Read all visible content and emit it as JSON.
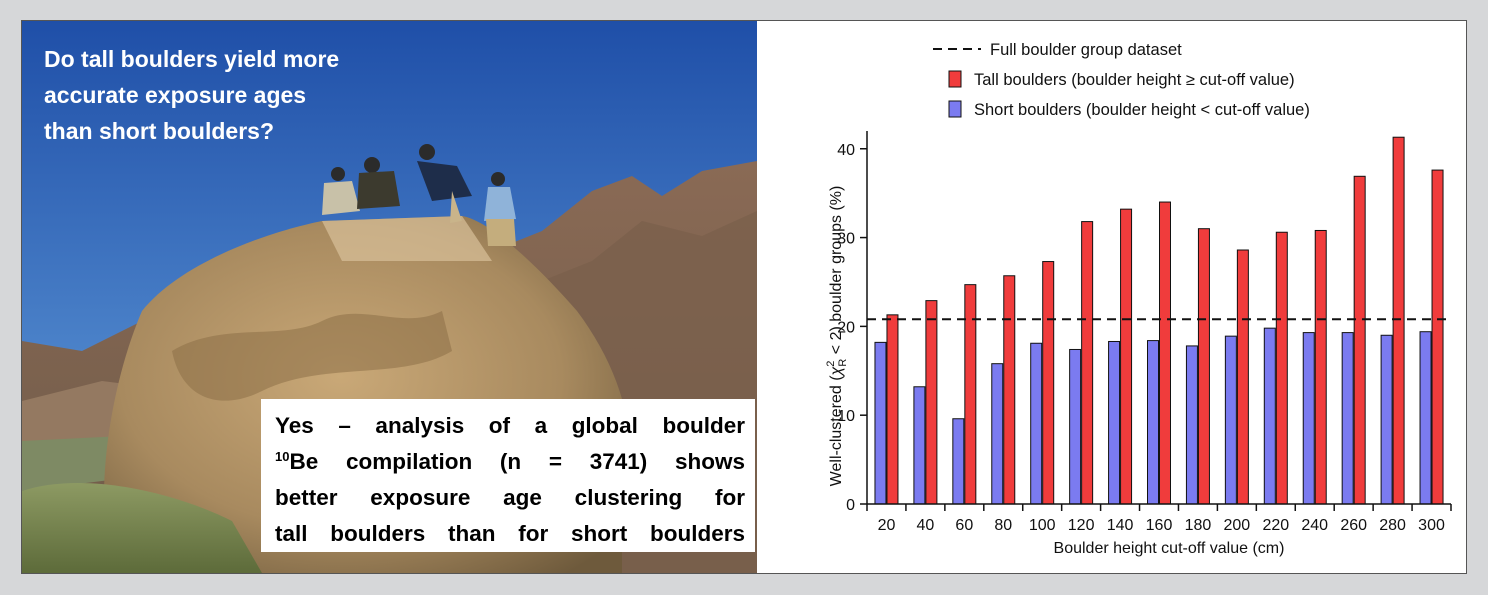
{
  "photo": {
    "question": "Do tall boulders yield more\naccurate exposure ages\nthan short boulders?",
    "answer": {
      "line1": "Yes – analysis of a global boulder",
      "line2_sup": "10",
      "line2": "Be compilation (n = 3741) shows",
      "line3": "better exposure age clustering for",
      "line4": "tall boulders than for short boulders"
    }
  },
  "chart_data": {
    "type": "bar",
    "xlabel": "Boulder height cut-off value (cm)",
    "ylabel": "Well-clustered (χ²R < 2) boulder groups (%)",
    "ylabel_parts": {
      "pre": "Well-clustered (",
      "chi": "χ",
      "sup": "2",
      "sub": "R",
      "post": " < 2) boulder groups (%)"
    },
    "ylim": [
      0,
      42
    ],
    "yticks": [
      0,
      10,
      20,
      30,
      40
    ],
    "categories": [
      "20",
      "40",
      "60",
      "80",
      "100",
      "120",
      "140",
      "160",
      "180",
      "200",
      "220",
      "240",
      "260",
      "280",
      "300"
    ],
    "series": [
      {
        "name": "Short boulders (boulder height < cut-off value)",
        "color": "#7b7bf0",
        "values": [
          18.2,
          13.2,
          9.6,
          15.8,
          18.1,
          17.4,
          18.3,
          18.4,
          17.8,
          18.9,
          19.8,
          19.3,
          19.3,
          19.0,
          19.4
        ]
      },
      {
        "name": "Tall boulders (boulder height ≥ cut-off value)",
        "color": "#f03c3c",
        "values": [
          21.3,
          22.9,
          24.7,
          25.7,
          27.3,
          31.8,
          33.2,
          34.0,
          31.0,
          28.6,
          30.6,
          30.8,
          36.9,
          41.3,
          37.6
        ]
      }
    ],
    "reference_line": {
      "name": "Full boulder group dataset",
      "value": 20.8
    },
    "legend": {
      "dashed": "Full boulder group dataset",
      "tall": "Tall boulders (boulder height ≥ cut-off value)",
      "short": "Short boulders (boulder height < cut-off value)"
    },
    "grid": false
  }
}
